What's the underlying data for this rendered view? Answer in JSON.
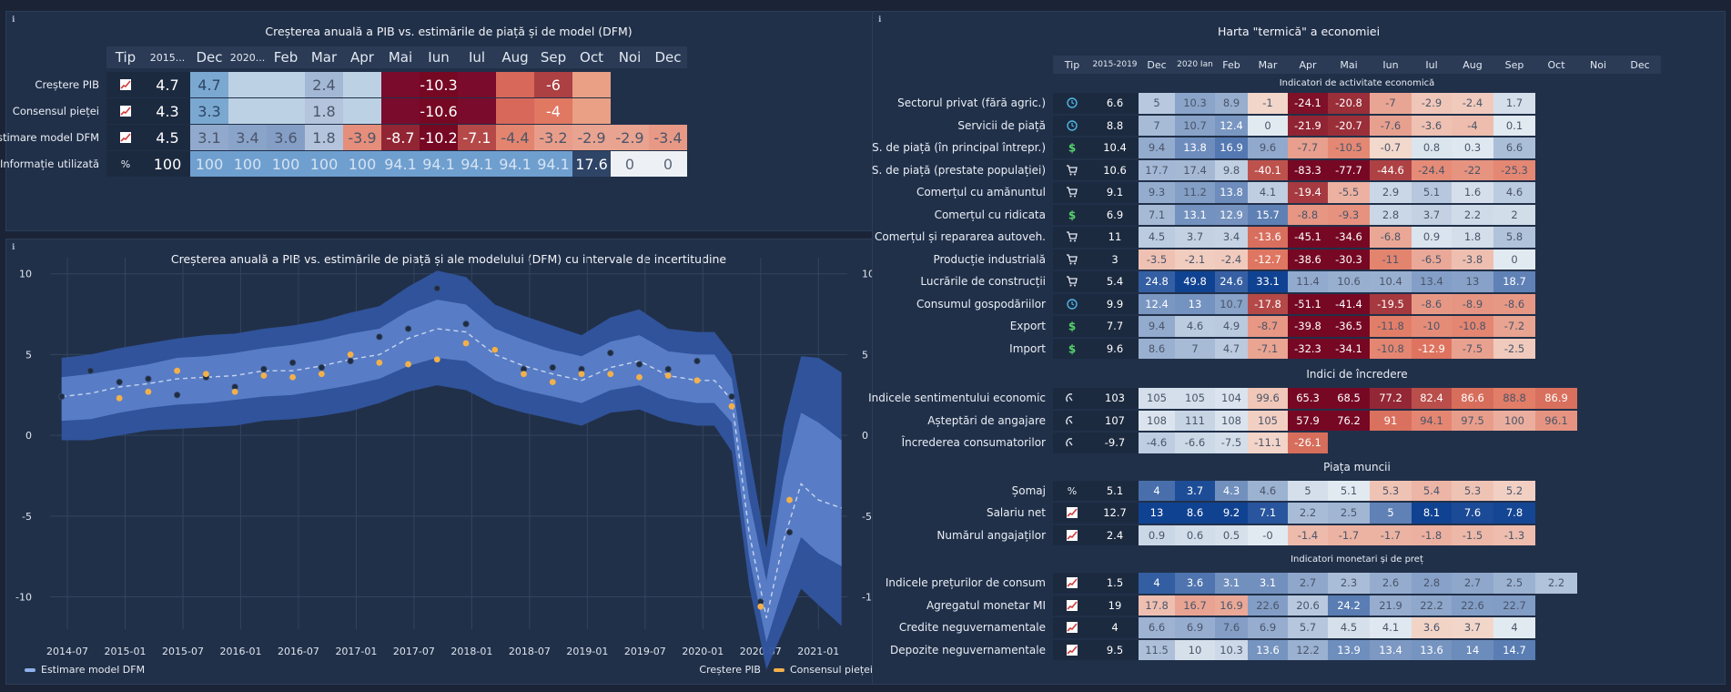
{
  "panel1": {
    "title": "Creșterea anuală a PIB vs. estimările de piață și de model (DFM)",
    "info": "ℹ"
  },
  "panel2": {
    "title": "Creșterea anuală a PIB vs. estimările de piață și ale modelului (DFM) cu intervale de incertitudine",
    "info": "ℹ"
  },
  "panel3": {
    "title": "Harta \"termică\" a economiei",
    "info": "ℹ"
  },
  "colors": {
    "background": "#1a2436",
    "panel": "#213049",
    "header_row": "#2b3b56",
    "point_gdp": "#1e2c44",
    "point_consensus": "#f3b04a",
    "median_line": "#c8d4ee",
    "band_outer": "#3155a0",
    "band_inner": "#5b7fc8"
  },
  "icons": {
    "chart": "line-chart-icon",
    "percent": "percent-icon",
    "clock": "clock-icon",
    "dollar": "dollar-icon",
    "cart": "cart-icon",
    "gauge": "gauge-icon"
  },
  "table1": {
    "headers": [
      "Tip",
      "2015...",
      "Dec",
      "2020...",
      "Feb",
      "Mar",
      "Apr",
      "Mai",
      "Iun",
      "Iul",
      "Aug",
      "Sep",
      "Oct",
      "Noi",
      "Dec"
    ],
    "rows": [
      {
        "label": "Creștere PIB",
        "icon": "chart",
        "values": [
          "4.7",
          "4.7",
          "",
          "",
          "2.4",
          "",
          "",
          "-10.3",
          "",
          "",
          "-6",
          "",
          "",
          ""
        ]
      },
      {
        "label": "Consensul pieței",
        "icon": "chart",
        "values": [
          "4.3",
          "3.3",
          "",
          "",
          "1.8",
          "",
          "",
          "-10.6",
          "",
          "",
          "-4",
          "",
          "",
          ""
        ]
      },
      {
        "label": "Estimare model DFM",
        "icon": "chart",
        "values": [
          "4.5",
          "3.1",
          "3.4",
          "3.6",
          "1.8",
          "-3.9",
          "-8.7",
          "-10.2",
          "-7.1",
          "-4.4",
          "-3.2",
          "-2.9",
          "-2.9",
          "-3.4"
        ]
      },
      {
        "label": "Informație utilizată",
        "icon": "percent",
        "values": [
          "100",
          "100",
          "100",
          "100",
          "100",
          "100",
          "94.1",
          "94.1",
          "94.1",
          "94.1",
          "94.1",
          "17.6",
          "0",
          "0"
        ]
      }
    ]
  },
  "chart_data": {
    "type": "line",
    "title": "Creșterea anuală a PIB vs. estimările de piață și ale modelului (DFM) cu intervale de incertitudine",
    "x_ticks": [
      "2014-07",
      "2015-01",
      "2015-07",
      "2016-01",
      "2016-07",
      "2017-01",
      "2017-07",
      "2018-01",
      "2018-07",
      "2019-01",
      "2019-07",
      "2020-01",
      "2020-07",
      "2021-01"
    ],
    "y_ticks": [
      "10",
      "5",
      "0",
      "-5",
      "-10"
    ],
    "ylim": [
      -12,
      11
    ],
    "xlim": [
      2014.35,
      2021.25
    ],
    "grid": true,
    "legend": "bottom",
    "series": [
      {
        "name": "Estimare model DFM",
        "x": [
          2014.45,
          2014.7,
          2014.95,
          2015.2,
          2015.45,
          2015.7,
          2015.95,
          2016.2,
          2016.45,
          2016.7,
          2016.95,
          2017.2,
          2017.45,
          2017.7,
          2017.95,
          2018.2,
          2018.45,
          2018.7,
          2018.95,
          2019.2,
          2019.45,
          2019.7,
          2019.95,
          2020.1,
          2020.25,
          2020.4,
          2020.55,
          2020.7,
          2020.85,
          2021.0,
          2021.2
        ],
        "y": [
          2.4,
          2.6,
          3.0,
          3.2,
          3.5,
          3.6,
          3.7,
          4.0,
          4.0,
          4.3,
          4.7,
          5.0,
          6.0,
          6.6,
          6.4,
          5.0,
          4.3,
          3.8,
          3.4,
          4.2,
          4.6,
          3.7,
          3.4,
          3.4,
          2.2,
          -6.0,
          -11.3,
          -6.5,
          -3.0,
          -4.0,
          -4.5
        ],
        "lo95": [
          -0.3,
          -0.3,
          0.0,
          0.3,
          0.4,
          0.5,
          0.6,
          0.9,
          1.0,
          1.2,
          1.5,
          2.0,
          2.7,
          3.1,
          2.8,
          1.9,
          1.4,
          1.0,
          0.6,
          1.4,
          1.6,
          0.9,
          0.6,
          0.6,
          -1.0,
          -9.3,
          -14.5,
          -12.0,
          -9.5,
          -10.5,
          -11.8
        ],
        "hi95": [
          4.8,
          5.0,
          5.4,
          5.7,
          6.0,
          6.2,
          6.3,
          6.6,
          6.8,
          7.1,
          7.6,
          8.0,
          9.2,
          10.2,
          9.8,
          8.1,
          7.4,
          6.8,
          6.2,
          7.3,
          7.8,
          6.6,
          6.4,
          6.4,
          5.0,
          -1.0,
          -7.0,
          0.6,
          4.9,
          4.8,
          3.9
        ],
        "lo68": [
          0.9,
          1.0,
          1.4,
          1.7,
          1.9,
          2.0,
          2.2,
          2.4,
          2.5,
          2.8,
          3.1,
          3.5,
          4.3,
          4.8,
          4.6,
          3.4,
          2.8,
          2.4,
          2.0,
          2.8,
          3.1,
          2.3,
          2.0,
          2.0,
          0.8,
          -7.5,
          -12.8,
          -9.3,
          -6.3,
          -7.3,
          -8.1
        ],
        "hi68": [
          3.6,
          3.8,
          4.1,
          4.4,
          4.8,
          4.9,
          5.1,
          5.4,
          5.6,
          5.9,
          6.3,
          6.6,
          7.7,
          8.4,
          8.1,
          6.6,
          5.9,
          5.3,
          4.9,
          5.8,
          6.2,
          5.2,
          5.0,
          5.0,
          3.5,
          -3.9,
          -9.0,
          -2.6,
          1.4,
          0.8,
          -0.3
        ]
      },
      {
        "name": "Creștere PIB",
        "x": [
          2014.45,
          2014.7,
          2014.95,
          2015.2,
          2015.45,
          2015.7,
          2015.95,
          2016.2,
          2016.45,
          2016.7,
          2016.95,
          2017.2,
          2017.45,
          2017.7,
          2017.95,
          2018.2,
          2018.45,
          2018.7,
          2018.95,
          2019.2,
          2019.45,
          2019.7,
          2019.95,
          2020.25,
          2020.5,
          2020.75
        ],
        "y": [
          2.4,
          4.0,
          3.3,
          3.5,
          2.5,
          3.6,
          3.0,
          4.1,
          4.5,
          4.2,
          4.6,
          6.1,
          6.6,
          9.1,
          6.9,
          5.3,
          4.1,
          4.2,
          4.1,
          5.1,
          4.4,
          4.1,
          4.6,
          2.4,
          -10.3,
          -6.0
        ]
      },
      {
        "name": "Consensul pieței",
        "x": [
          2014.95,
          2015.2,
          2015.45,
          2015.7,
          2015.95,
          2016.2,
          2016.45,
          2016.7,
          2016.95,
          2017.2,
          2017.45,
          2017.7,
          2017.95,
          2018.2,
          2018.45,
          2018.7,
          2018.95,
          2019.2,
          2019.45,
          2019.7,
          2019.95,
          2020.25,
          2020.5,
          2020.75
        ],
        "y": [
          2.3,
          2.7,
          4.0,
          3.8,
          2.7,
          3.7,
          3.6,
          3.8,
          5.0,
          4.5,
          4.4,
          4.7,
          5.7,
          5.3,
          3.8,
          3.3,
          3.8,
          3.8,
          3.6,
          3.7,
          3.4,
          1.8,
          -10.6,
          -4.0
        ]
      }
    ]
  },
  "legend2": {
    "left": "Estimare model DFM",
    "right1": "Creștere PIB",
    "right2": "Consensul pieței"
  },
  "heatmap": {
    "headers": [
      "Tip",
      "2015-2019",
      "Dec",
      "2020 Ian",
      "Feb",
      "Mar",
      "Apr",
      "Mai",
      "Iun",
      "Iul",
      "Aug",
      "Sep",
      "Oct",
      "Noi",
      "Dec"
    ],
    "sections": [
      {
        "title": "Indicatori de activitate economică",
        "rows": [
          {
            "label": "Sectorul privat (fără agric.)",
            "icon": "clock",
            "values": [
              "6.6",
              "5",
              "10.3",
              "8.9",
              "-1",
              "-24.1",
              "-20.8",
              "-7",
              "-2.9",
              "-2.4",
              "1.7"
            ]
          },
          {
            "label": "Servicii de piață",
            "icon": "clock",
            "values": [
              "8.8",
              "7",
              "10.7",
              "12.4",
              "0",
              "-21.9",
              "-20.7",
              "-7.6",
              "-3.6",
              "-4",
              "0.1"
            ]
          },
          {
            "label": "S. de piață (în principal întrepr.)",
            "icon": "dollar",
            "values": [
              "10.4",
              "9.4",
              "13.8",
              "16.9",
              "9.6",
              "-7.7",
              "-10.5",
              "-0.7",
              "0.8",
              "0.3",
              "6.6"
            ]
          },
          {
            "label": "S. de piață (prestate populației)",
            "icon": "cart",
            "values": [
              "10.6",
              "17.7",
              "17.4",
              "9.8",
              "-40.1",
              "-83.3",
              "-77.7",
              "-44.6",
              "-24.4",
              "-22",
              "-25.3"
            ]
          },
          {
            "label": "Comerțul cu amănuntul",
            "icon": "cart",
            "values": [
              "9.1",
              "9.3",
              "11.2",
              "13.8",
              "4.1",
              "-19.4",
              "-5.5",
              "2.9",
              "5.1",
              "1.6",
              "4.6"
            ]
          },
          {
            "label": "Comerțul cu ridicata",
            "icon": "dollar",
            "values": [
              "6.9",
              "7.1",
              "13.1",
              "12.9",
              "15.7",
              "-8.8",
              "-9.3",
              "2.8",
              "3.7",
              "2.2",
              "2"
            ]
          },
          {
            "label": "Comerțul și repararea autoveh.",
            "icon": "cart",
            "values": [
              "11",
              "4.5",
              "3.7",
              "3.4",
              "-13.6",
              "-45.1",
              "-34.6",
              "-6.8",
              "0.9",
              "1.8",
              "5.8"
            ]
          },
          {
            "label": "Producție industrială",
            "icon": "cart",
            "values": [
              "3",
              "-3.5",
              "-2.1",
              "-2.4",
              "-12.7",
              "-38.6",
              "-30.3",
              "-11",
              "-6.5",
              "-3.8",
              "0"
            ]
          },
          {
            "label": "Lucrările de construcții",
            "icon": "cart",
            "values": [
              "5.4",
              "24.8",
              "49.8",
              "24.6",
              "33.1",
              "11.4",
              "10.6",
              "10.4",
              "13.4",
              "13",
              "18.7"
            ]
          },
          {
            "label": "Consumul gospodăriilor",
            "icon": "clock",
            "values": [
              "9.9",
              "12.4",
              "13",
              "10.7",
              "-17.8",
              "-51.1",
              "-41.4",
              "-19.5",
              "-8.6",
              "-8.9",
              "-8.6"
            ]
          },
          {
            "label": "Export",
            "icon": "dollar",
            "values": [
              "7.7",
              "9.4",
              "4.6",
              "4.9",
              "-8.7",
              "-39.8",
              "-36.5",
              "-11.8",
              "-10",
              "-10.8",
              "-7.2"
            ]
          },
          {
            "label": "Import",
            "icon": "dollar",
            "values": [
              "9.6",
              "8.6",
              "7",
              "4.7",
              "-7.1",
              "-32.3",
              "-34.1",
              "-10.8",
              "-12.9",
              "-7.5",
              "-2.5"
            ]
          }
        ]
      },
      {
        "title": "Indici de încredere",
        "rows": [
          {
            "label": "Indicele sentimentului economic",
            "icon": "gauge",
            "values": [
              "103",
              "105",
              "105",
              "104",
              "99.6",
              "65.3",
              "68.5",
              "77.2",
              "82.4",
              "86.6",
              "88.8",
              "86.9"
            ]
          },
          {
            "label": "Așteptări de angajare",
            "icon": "gauge",
            "values": [
              "107",
              "108",
              "111",
              "108",
              "105",
              "57.9",
              "76.2",
              "91",
              "94.1",
              "97.5",
              "100",
              "96.1"
            ]
          },
          {
            "label": "Încrederea consumatorilor",
            "icon": "gauge",
            "values": [
              "-9.7",
              "-4.6",
              "-6.6",
              "-7.5",
              "-11.1",
              "-26.1"
            ]
          }
        ]
      },
      {
        "title": "Piața muncii",
        "rows": [
          {
            "label": "Șomaj",
            "icon": "percent",
            "values": [
              "5.1",
              "4",
              "3.7",
              "4.3",
              "4.6",
              "5",
              "5.1",
              "5.3",
              "5.4",
              "5.3",
              "5.2"
            ]
          },
          {
            "label": "Salariu net",
            "icon": "chart",
            "values": [
              "12.7",
              "13",
              "8.6",
              "9.2",
              "7.1",
              "2.2",
              "2.5",
              "5",
              "8.1",
              "7.6",
              "7.8"
            ]
          },
          {
            "label": "Numărul angajaților",
            "icon": "chart",
            "values": [
              "2.4",
              "0.9",
              "0.6",
              "0.5",
              "-0",
              "-1.4",
              "-1.7",
              "-1.7",
              "-1.8",
              "-1.5",
              "-1.3"
            ]
          }
        ]
      },
      {
        "title": "Indicatori monetari și de preț",
        "rows": [
          {
            "label": "Indicele prețurilor de consum",
            "icon": "chart",
            "values": [
              "1.5",
              "4",
              "3.6",
              "3.1",
              "3.1",
              "2.7",
              "2.3",
              "2.6",
              "2.8",
              "2.7",
              "2.5",
              "2.2"
            ]
          },
          {
            "label": "Agregatul monetar MI",
            "icon": "chart",
            "values": [
              "19",
              "17.8",
              "16.7",
              "16.9",
              "22.6",
              "20.6",
              "24.2",
              "21.9",
              "22.2",
              "22.6",
              "22.7"
            ]
          },
          {
            "label": "Credite neguvernamentale",
            "icon": "chart",
            "values": [
              "4",
              "6.6",
              "6.9",
              "7.6",
              "6.9",
              "5.7",
              "4.5",
              "4.1",
              "3.6",
              "3.7",
              "4"
            ]
          },
          {
            "label": "Depozite neguvernamentale",
            "icon": "chart",
            "values": [
              "9.5",
              "11.5",
              "10",
              "10.3",
              "13.6",
              "12.2",
              "13.9",
              "13.4",
              "13.6",
              "14",
              "14.7"
            ]
          }
        ]
      }
    ]
  }
}
